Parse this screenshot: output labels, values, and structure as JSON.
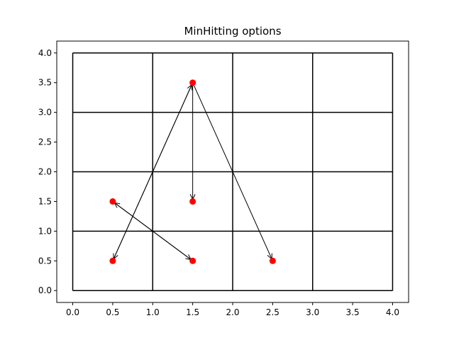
{
  "chart_data": {
    "type": "scatter",
    "title": "MinHitting options",
    "xlabel": "",
    "ylabel": "",
    "xlim": [
      -0.2,
      4.2
    ],
    "ylim": [
      -0.2,
      4.2
    ],
    "xticks": [
      "0.0",
      "0.5",
      "1.0",
      "1.5",
      "2.0",
      "2.5",
      "3.0",
      "3.5",
      "4.0"
    ],
    "yticks": [
      "0.0",
      "0.5",
      "1.0",
      "1.5",
      "2.0",
      "2.5",
      "3.0",
      "3.5",
      "4.0"
    ],
    "grid": {
      "x_min": 0,
      "x_max": 4,
      "y_min": 0,
      "y_max": 4,
      "verticals": [
        0,
        1,
        2,
        3,
        4
      ],
      "horizontals": [
        0,
        1,
        2,
        3,
        4
      ]
    },
    "points": [
      {
        "x": 1.5,
        "y": 3.5
      },
      {
        "x": 0.5,
        "y": 1.5
      },
      {
        "x": 1.5,
        "y": 1.5
      },
      {
        "x": 0.5,
        "y": 0.5
      },
      {
        "x": 1.5,
        "y": 0.5
      },
      {
        "x": 2.5,
        "y": 0.5
      }
    ],
    "arrows": [
      {
        "from": [
          1.5,
          3.5
        ],
        "to": [
          0.5,
          0.5
        ]
      },
      {
        "from": [
          1.5,
          3.5
        ],
        "to": [
          1.5,
          1.5
        ]
      },
      {
        "from": [
          1.5,
          3.5
        ],
        "to": [
          2.5,
          0.5
        ]
      },
      {
        "from": [
          0.5,
          0.5
        ],
        "to": [
          1.5,
          3.5
        ]
      },
      {
        "from": [
          0.5,
          1.5
        ],
        "to": [
          1.5,
          0.5
        ]
      },
      {
        "from": [
          1.5,
          0.5
        ],
        "to": [
          0.5,
          1.5
        ]
      }
    ],
    "colors": {
      "point": "#ff0000",
      "line": "#000000",
      "axes": "#000000",
      "background": "#ffffff"
    }
  }
}
